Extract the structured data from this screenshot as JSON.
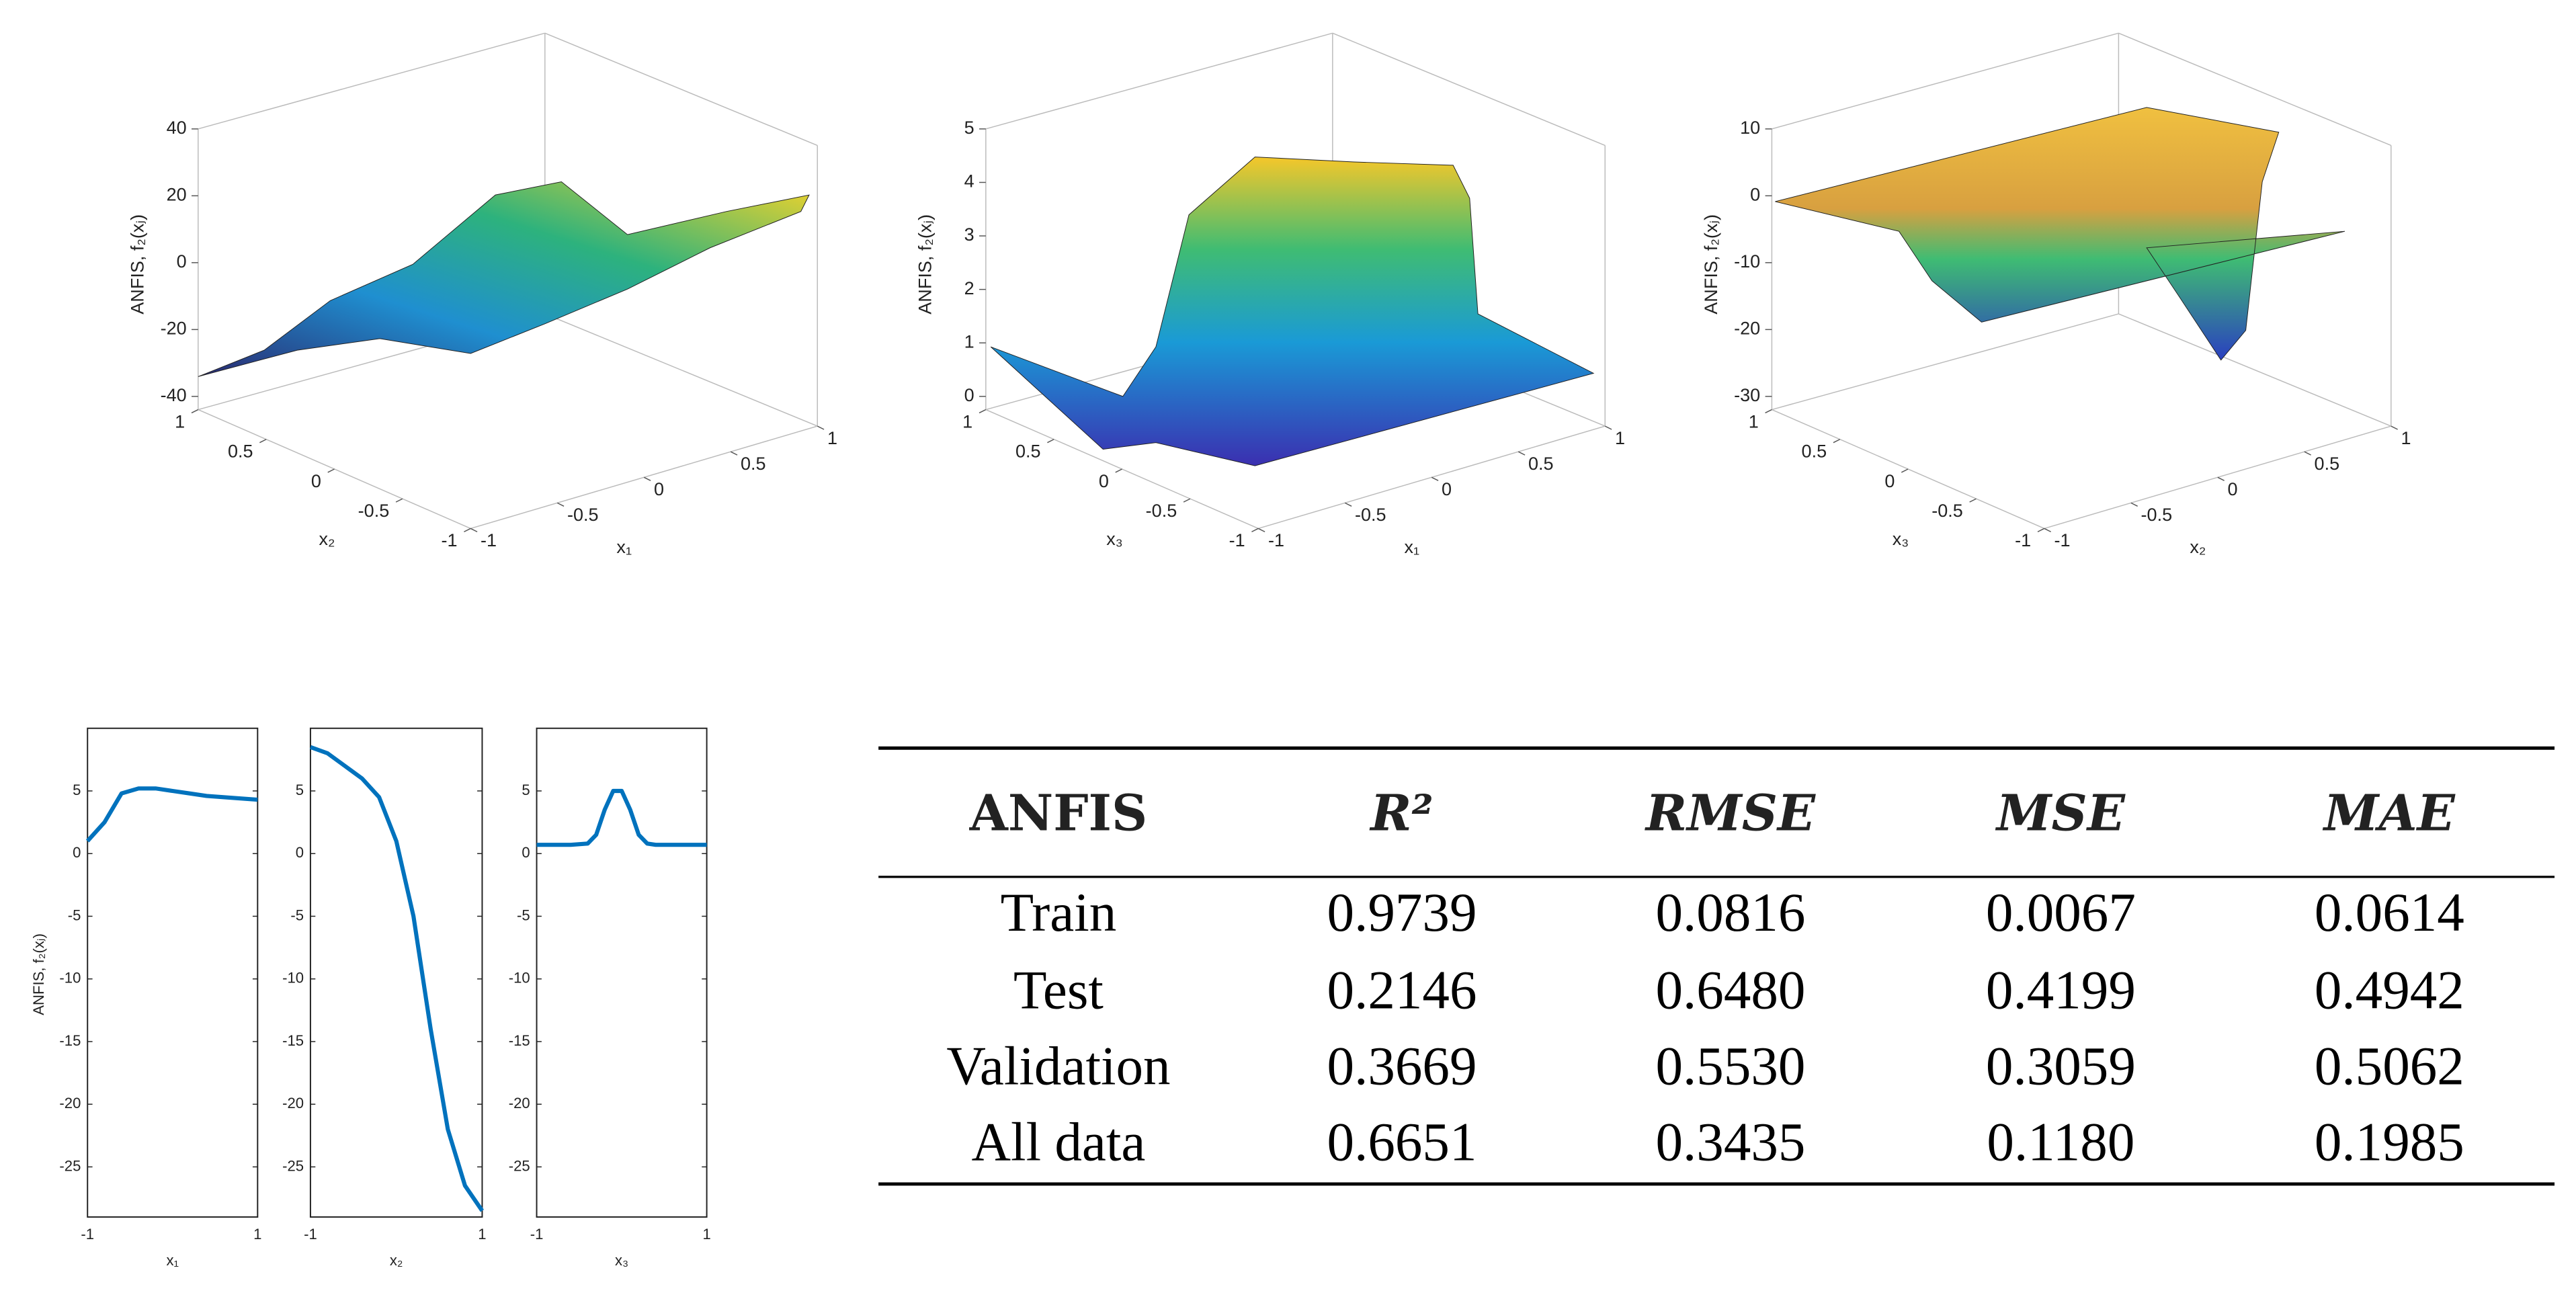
{
  "surface_plots": [
    {
      "zlabel": "ANFIS, f₂(xⱼ)",
      "xlabel": "x₁",
      "ylabel": "x₂",
      "zlim": [
        -40,
        40
      ],
      "zticks": [
        -40,
        -20,
        0,
        20,
        40
      ],
      "xticks": [
        -1,
        -0.5,
        0,
        0.5,
        1
      ],
      "yticks": [
        1,
        0.5,
        0,
        -0.5,
        -1
      ]
    },
    {
      "zlabel": "ANFIS, f₂(xⱼ)",
      "xlabel": "x₁",
      "ylabel": "x₃",
      "zlim": [
        0,
        5
      ],
      "zticks": [
        0,
        1,
        2,
        3,
        4,
        5
      ],
      "xticks": [
        -1,
        -0.5,
        0,
        0.5,
        1
      ],
      "yticks": [
        1,
        0.5,
        0,
        -0.5,
        -1
      ]
    },
    {
      "zlabel": "ANFIS, f₂(xⱼ)",
      "xlabel": "x₂",
      "ylabel": "x₃",
      "zlim": [
        -30,
        10
      ],
      "zticks": [
        -30,
        -20,
        -10,
        0,
        10
      ],
      "xticks": [
        -1,
        -0.5,
        0,
        0.5,
        1
      ],
      "yticks": [
        1,
        0.5,
        0,
        -0.5,
        -1
      ]
    }
  ],
  "line_plots": {
    "type": "line",
    "ylabel": "ANFIS, f₂(xⱼ)",
    "ylim": [
      -29,
      10
    ],
    "yticks": [
      5,
      0,
      -5,
      -10,
      -15,
      -20,
      -25
    ],
    "color": "#0072bd",
    "panels": [
      {
        "xlabel": "x₁",
        "xlim": [
          -1,
          1
        ],
        "xticks": [
          -1,
          1
        ],
        "x": [
          -1,
          -0.8,
          -0.6,
          -0.4,
          -0.2,
          0,
          0.2,
          0.4,
          0.6,
          0.8,
          1
        ],
        "values": [
          1,
          2.5,
          4.8,
          5.2,
          5.2,
          5.0,
          4.8,
          4.6,
          4.5,
          4.4,
          4.3
        ]
      },
      {
        "xlabel": "x₂",
        "xlim": [
          -1,
          1
        ],
        "xticks": [
          -1,
          1
        ],
        "x": [
          -1,
          -0.8,
          -0.6,
          -0.4,
          -0.2,
          0,
          0.2,
          0.4,
          0.6,
          0.8,
          1
        ],
        "values": [
          8.5,
          8,
          7,
          6,
          4.5,
          1,
          -5,
          -14,
          -22,
          -26.5,
          -28.5
        ]
      },
      {
        "xlabel": "x₃",
        "xlim": [
          -1,
          1
        ],
        "xticks": [
          -1,
          1
        ],
        "x": [
          -1,
          -0.6,
          -0.4,
          -0.3,
          -0.2,
          -0.1,
          0,
          0.1,
          0.2,
          0.3,
          0.4,
          0.6,
          1
        ],
        "values": [
          0.7,
          0.7,
          0.8,
          1.5,
          3.5,
          5,
          5,
          3.5,
          1.5,
          0.8,
          0.7,
          0.7,
          0.7
        ]
      }
    ]
  },
  "table": {
    "header": [
      "ANFIS",
      "R²",
      "RMSE",
      "MSE",
      "MAE"
    ],
    "rows": [
      [
        "Train",
        "0.9739",
        "0.0816",
        "0.0067",
        "0.0614"
      ],
      [
        "Test",
        "0.2146",
        "0.6480",
        "0.4199",
        "0.4942"
      ],
      [
        "Validation",
        "0.3669",
        "0.5530",
        "0.3059",
        "0.5062"
      ],
      [
        "All data",
        "0.6651",
        "0.3435",
        "0.1180",
        "0.1985"
      ]
    ]
  }
}
